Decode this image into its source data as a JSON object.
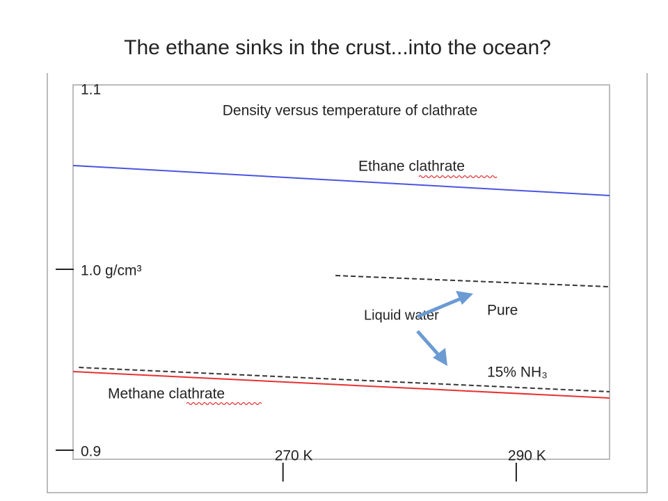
{
  "slide_title": "The ethane sinks in the crust...into the ocean?",
  "chart_data": {
    "type": "line",
    "title": "Density versus temperature of clathrate",
    "xlim": [
      252,
      298
    ],
    "ylim": [
      0.9,
      1.1
    ],
    "xticks": [
      {
        "value": 270,
        "label": "270 K"
      },
      {
        "value": 290,
        "label": "290 K"
      }
    ],
    "yticks": [
      1.1,
      {
        "value": 1.0,
        "label": "1.0 g/cm³"
      },
      0.9
    ],
    "annotations": [
      "Liquid water"
    ],
    "series": [
      {
        "name": "Ethane clathrate",
        "color": "#4a55e0",
        "dash": false,
        "x": [
          252,
          298
        ],
        "values": [
          1.0585,
          1.0419
        ]
      },
      {
        "name": "Methane clathrate",
        "color": "#e83030",
        "dash": false,
        "x": [
          252,
          298
        ],
        "values": [
          0.9446,
          0.93
        ]
      },
      {
        "name": "Pure",
        "color": "#333333",
        "dash": true,
        "x": [
          274.5,
          298
        ],
        "values": [
          0.9977,
          0.9915
        ]
      },
      {
        "name": "15% NH₃",
        "color": "#333333",
        "dash": true,
        "x": [
          252.5,
          298
        ],
        "values": [
          0.9469,
          0.9335
        ]
      }
    ]
  }
}
